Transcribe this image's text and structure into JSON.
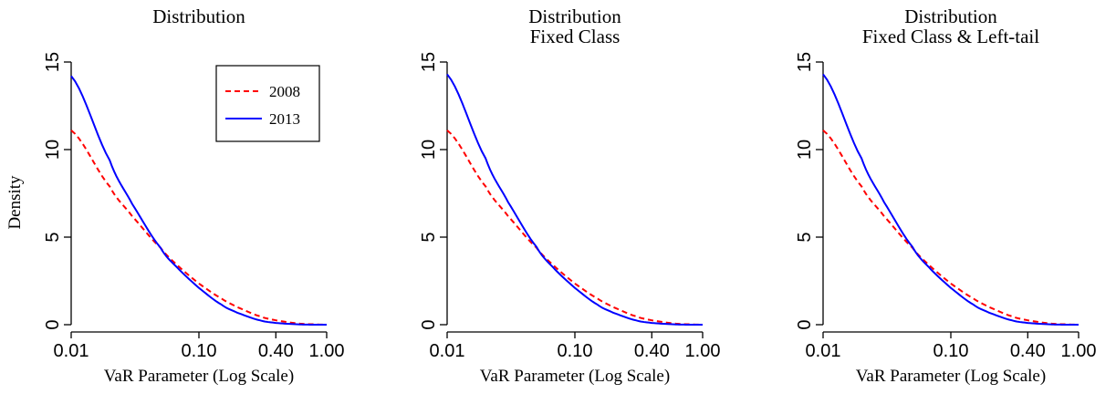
{
  "colors": {
    "series_2008": "#ff0000",
    "series_2013": "#0000ff",
    "axis": "#000000"
  },
  "chart_data": [
    {
      "type": "line",
      "title": [
        "Distribution"
      ],
      "xlabel": "VaR Parameter (Log Scale)",
      "ylabel": "Density",
      "xscale": "log",
      "xlim": [
        0.01,
        1.0
      ],
      "ylim": [
        0,
        15
      ],
      "xticks": [
        {
          "value": 0.01,
          "label": "0.01"
        },
        {
          "value": 0.1,
          "label": "0.10"
        },
        {
          "value": 0.4,
          "label": "0.40"
        },
        {
          "value": 1.0,
          "label": "1.00"
        }
      ],
      "yticks": [
        {
          "value": 0,
          "label": "0"
        },
        {
          "value": 5,
          "label": "5"
        },
        {
          "value": 10,
          "label": "10"
        },
        {
          "value": 15,
          "label": "15"
        }
      ],
      "grid": false,
      "legend": {
        "placement": "top-right",
        "entries": [
          {
            "name": "2008",
            "style": "dashed"
          },
          {
            "name": "2013",
            "style": "solid"
          }
        ]
      },
      "series": [
        {
          "name": "2008",
          "style": "dashed",
          "x": [
            0.01,
            0.02,
            0.03,
            0.05,
            0.07,
            0.1,
            0.15,
            0.2,
            0.3,
            0.4,
            0.6,
            0.8,
            1.0
          ],
          "y": [
            11.1,
            7.9,
            6.2,
            4.4,
            3.3,
            2.35,
            1.5,
            1.0,
            0.48,
            0.25,
            0.07,
            0.02,
            0.0
          ]
        },
        {
          "name": "2013",
          "style": "solid",
          "x": [
            0.01,
            0.02,
            0.03,
            0.05,
            0.07,
            0.1,
            0.15,
            0.2,
            0.3,
            0.4,
            0.6,
            0.8,
            1.0
          ],
          "y": [
            14.2,
            9.4,
            6.9,
            4.4,
            3.15,
            2.1,
            1.15,
            0.68,
            0.25,
            0.1,
            0.02,
            0.0,
            0.0
          ]
        }
      ]
    },
    {
      "type": "line",
      "title": [
        "Distribution",
        "Fixed Class"
      ],
      "xlabel": "VaR Parameter (Log Scale)",
      "ylabel": "",
      "xscale": "log",
      "xlim": [
        0.01,
        1.0
      ],
      "ylim": [
        0,
        15
      ],
      "xticks": [
        {
          "value": 0.01,
          "label": "0.01"
        },
        {
          "value": 0.1,
          "label": "0.10"
        },
        {
          "value": 0.4,
          "label": "0.40"
        },
        {
          "value": 1.0,
          "label": "1.00"
        }
      ],
      "yticks": [
        {
          "value": 0,
          "label": "0"
        },
        {
          "value": 5,
          "label": "5"
        },
        {
          "value": 10,
          "label": "10"
        },
        {
          "value": 15,
          "label": "15"
        }
      ],
      "grid": false,
      "legend": null,
      "series": [
        {
          "name": "2008",
          "style": "dashed",
          "x": [
            0.01,
            0.02,
            0.03,
            0.05,
            0.07,
            0.1,
            0.15,
            0.2,
            0.3,
            0.4,
            0.6,
            0.8,
            1.0
          ],
          "y": [
            11.1,
            7.9,
            6.2,
            4.4,
            3.3,
            2.35,
            1.5,
            1.0,
            0.48,
            0.25,
            0.07,
            0.02,
            0.0
          ]
        },
        {
          "name": "2013",
          "style": "solid",
          "x": [
            0.01,
            0.02,
            0.03,
            0.05,
            0.07,
            0.1,
            0.15,
            0.2,
            0.3,
            0.4,
            0.6,
            0.8,
            1.0
          ],
          "y": [
            14.3,
            9.5,
            7.0,
            4.45,
            3.15,
            2.1,
            1.15,
            0.68,
            0.25,
            0.1,
            0.02,
            0.0,
            0.0
          ]
        }
      ]
    },
    {
      "type": "line",
      "title": [
        "Distribution",
        "Fixed Class & Left-tail"
      ],
      "xlabel": "VaR Parameter (Log Scale)",
      "ylabel": "",
      "xscale": "log",
      "xlim": [
        0.01,
        1.0
      ],
      "ylim": [
        0,
        15
      ],
      "xticks": [
        {
          "value": 0.01,
          "label": "0.01"
        },
        {
          "value": 0.1,
          "label": "0.10"
        },
        {
          "value": 0.4,
          "label": "0.40"
        },
        {
          "value": 1.0,
          "label": "1.00"
        }
      ],
      "yticks": [
        {
          "value": 0,
          "label": "0"
        },
        {
          "value": 5,
          "label": "5"
        },
        {
          "value": 10,
          "label": "10"
        },
        {
          "value": 15,
          "label": "15"
        }
      ],
      "grid": false,
      "legend": null,
      "series": [
        {
          "name": "2008",
          "style": "dashed",
          "x": [
            0.01,
            0.02,
            0.03,
            0.05,
            0.07,
            0.1,
            0.15,
            0.2,
            0.3,
            0.4,
            0.6,
            0.8,
            1.0
          ],
          "y": [
            11.1,
            7.9,
            6.2,
            4.4,
            3.3,
            2.35,
            1.5,
            1.0,
            0.48,
            0.25,
            0.07,
            0.02,
            0.0
          ]
        },
        {
          "name": "2013",
          "style": "solid",
          "x": [
            0.01,
            0.02,
            0.03,
            0.05,
            0.07,
            0.1,
            0.15,
            0.2,
            0.3,
            0.4,
            0.6,
            0.8,
            1.0
          ],
          "y": [
            14.3,
            9.5,
            7.0,
            4.45,
            3.15,
            2.1,
            1.15,
            0.68,
            0.25,
            0.1,
            0.02,
            0.0,
            0.0
          ]
        }
      ]
    }
  ]
}
